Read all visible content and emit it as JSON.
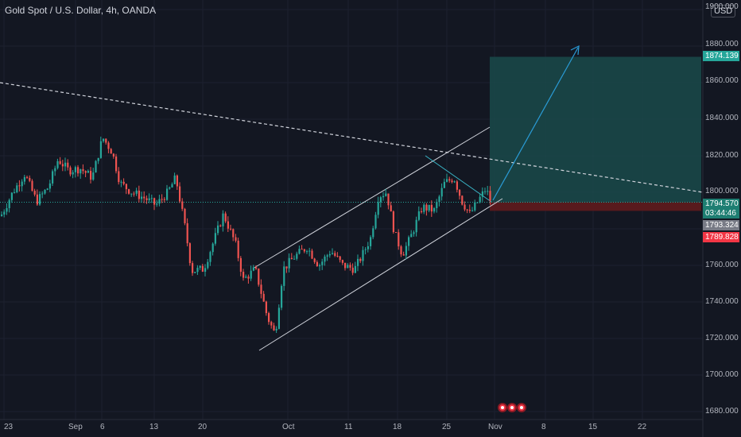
{
  "header": {
    "title": "Gold Spot / U.S. Dollar, 4h, OANDA",
    "currency": "USD"
  },
  "price_axis": {
    "labels": [
      "1900.000",
      "1880.000",
      "1860.000",
      "1840.000",
      "1820.000",
      "1800.000",
      "1760.000",
      "1740.000",
      "1720.000",
      "1700.000",
      "1680.000"
    ]
  },
  "time_axis": {
    "labels": [
      "23",
      "Sep",
      "6",
      "13",
      "20",
      "Oct",
      "11",
      "18",
      "25",
      "Nov",
      "8",
      "15",
      "22"
    ]
  },
  "price_tags": {
    "target": "1874.139",
    "current": "1794.570",
    "countdown": "03:44:46",
    "gray": "1793.324",
    "stop": "1789.828"
  },
  "colors": {
    "background": "#131722",
    "bullish": "#26a69a",
    "bearish": "#ef5350",
    "target_zone": "#1a4a4a",
    "stop_zone": "#5c1a1e",
    "lines": "#d1d4dc",
    "arrow": "#2a9bd6"
  },
  "events": [
    "flag-icon",
    "flag-icon",
    "flag-icon"
  ]
}
